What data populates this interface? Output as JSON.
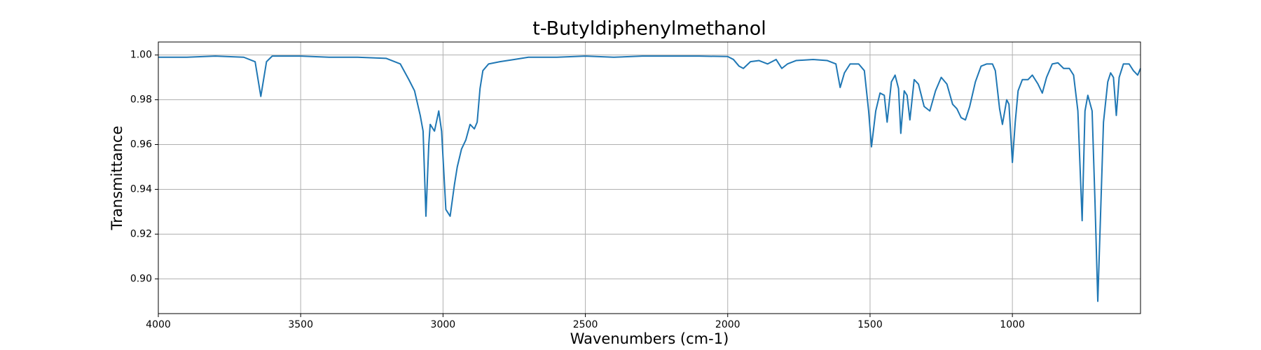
{
  "chart_data": {
    "type": "line",
    "title": "t-Butyldiphenylmethanol",
    "x_label": "Wavenumbers (cm-1)",
    "y_label": "Transmittance",
    "xlim": [
      4000,
      550
    ],
    "ylim": [
      0.8845,
      1.0058
    ],
    "xticks": [
      4000,
      3500,
      3000,
      2500,
      2000,
      1500,
      1000
    ],
    "yticks": [
      {
        "value": 0.9,
        "label": "0.90"
      },
      0.92,
      0.94,
      0.96,
      0.98,
      {
        "value": 1.0,
        "label": "1.00"
      }
    ],
    "grid": true,
    "series": [
      {
        "color": "#1f77b4",
        "x": [
          4000,
          3900,
          3800,
          3700,
          3660,
          3640,
          3620,
          3600,
          3500,
          3400,
          3300,
          3200,
          3150,
          3120,
          3100,
          3080,
          3070,
          3060,
          3050,
          3045,
          3030,
          3015,
          3005,
          2990,
          2985,
          2975,
          2960,
          2950,
          2935,
          2920,
          2905,
          2890,
          2880,
          2870,
          2860,
          2840,
          2800,
          2750,
          2700,
          2600,
          2500,
          2400,
          2300,
          2200,
          2100,
          2000,
          1980,
          1960,
          1945,
          1920,
          1890,
          1860,
          1830,
          1810,
          1790,
          1760,
          1700,
          1650,
          1620,
          1605,
          1590,
          1570,
          1540,
          1520,
          1505,
          1495,
          1480,
          1465,
          1450,
          1440,
          1425,
          1412,
          1400,
          1392,
          1380,
          1370,
          1360,
          1345,
          1330,
          1310,
          1290,
          1270,
          1250,
          1230,
          1210,
          1195,
          1180,
          1165,
          1150,
          1130,
          1110,
          1090,
          1070,
          1060,
          1045,
          1035,
          1020,
          1012,
          1000,
          990,
          980,
          965,
          945,
          930,
          910,
          895,
          880,
          860,
          840,
          820,
          800,
          785,
          770,
          755,
          745,
          735,
          720,
          710,
          700,
          690,
          680,
          665,
          655,
          645,
          635,
          625,
          610,
          590,
          575,
          560,
          550
        ],
        "values": [
          0.999,
          0.999,
          0.9995,
          0.999,
          0.997,
          0.9815,
          0.997,
          0.9995,
          0.9995,
          0.999,
          0.999,
          0.9985,
          0.996,
          0.989,
          0.984,
          0.973,
          0.966,
          0.928,
          0.96,
          0.969,
          0.966,
          0.975,
          0.966,
          0.931,
          0.93,
          0.928,
          0.942,
          0.95,
          0.958,
          0.962,
          0.969,
          0.967,
          0.97,
          0.985,
          0.993,
          0.996,
          0.997,
          0.998,
          0.999,
          0.999,
          0.9995,
          0.999,
          0.9995,
          0.9995,
          0.9995,
          0.9993,
          0.998,
          0.995,
          0.994,
          0.997,
          0.9975,
          0.996,
          0.998,
          0.994,
          0.996,
          0.9975,
          0.998,
          0.9975,
          0.996,
          0.9855,
          0.992,
          0.996,
          0.996,
          0.993,
          0.975,
          0.959,
          0.975,
          0.983,
          0.982,
          0.97,
          0.988,
          0.991,
          0.985,
          0.965,
          0.984,
          0.982,
          0.971,
          0.989,
          0.987,
          0.977,
          0.975,
          0.984,
          0.99,
          0.987,
          0.978,
          0.976,
          0.972,
          0.971,
          0.977,
          0.988,
          0.995,
          0.996,
          0.996,
          0.993,
          0.976,
          0.969,
          0.98,
          0.978,
          0.952,
          0.97,
          0.984,
          0.989,
          0.989,
          0.991,
          0.987,
          0.983,
          0.99,
          0.996,
          0.9965,
          0.994,
          0.994,
          0.991,
          0.975,
          0.926,
          0.975,
          0.982,
          0.975,
          0.935,
          0.89,
          0.93,
          0.97,
          0.988,
          0.992,
          0.99,
          0.973,
          0.99,
          0.996,
          0.996,
          0.993,
          0.991,
          0.994
        ]
      }
    ]
  }
}
